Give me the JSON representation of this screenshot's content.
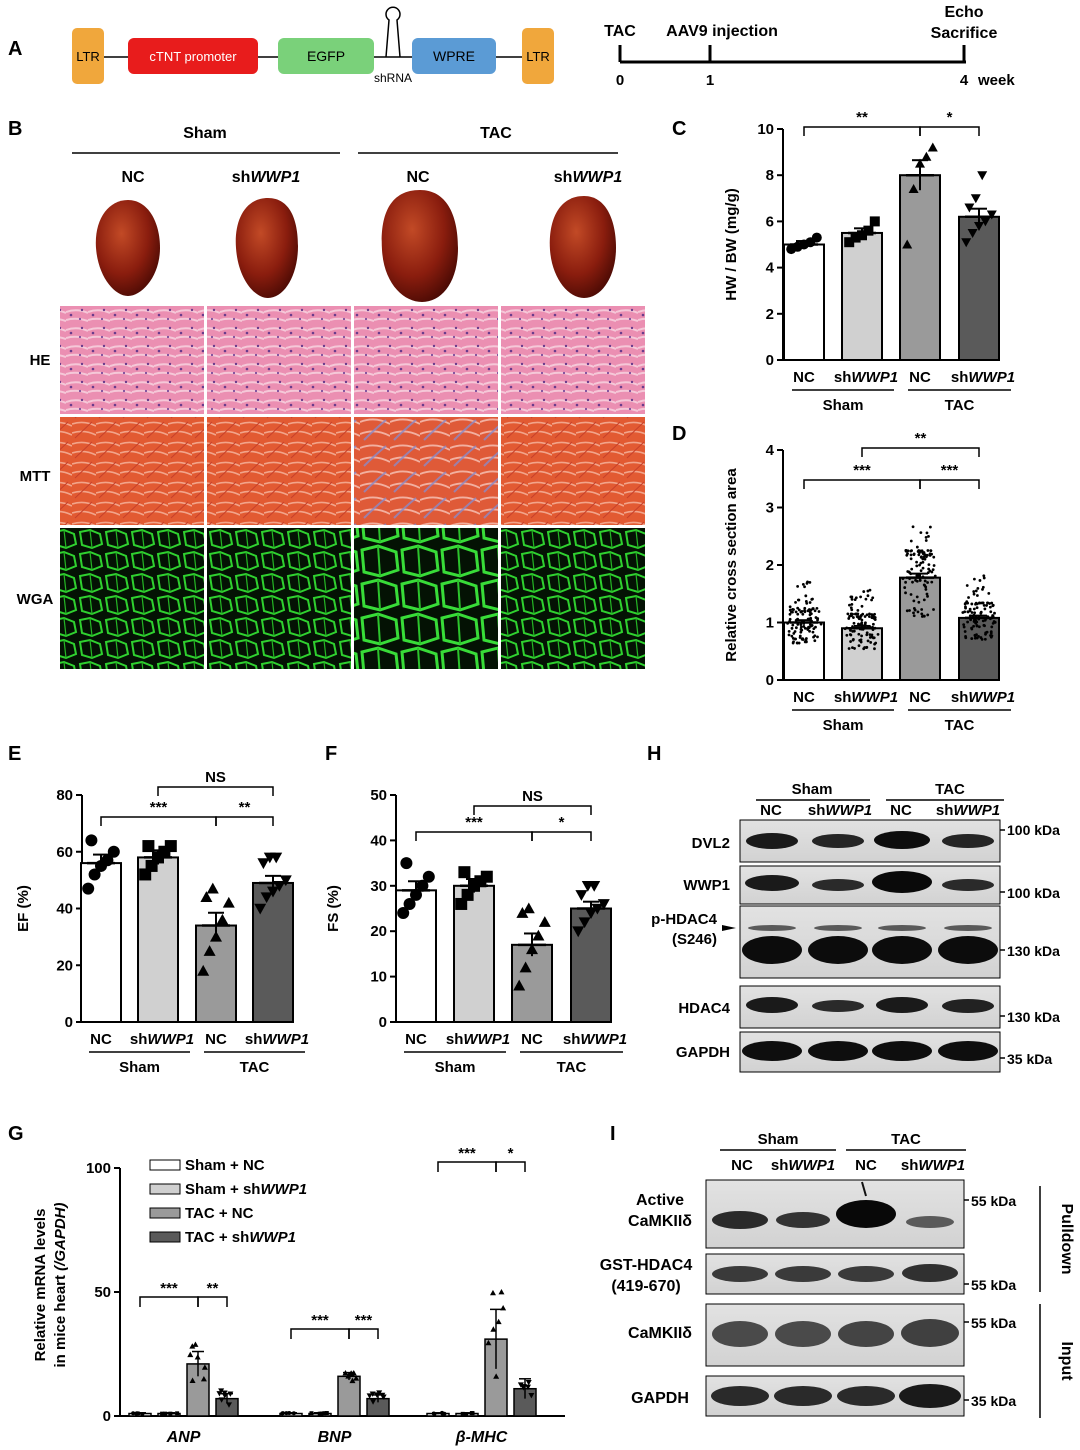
{
  "panel_letters": [
    "A",
    "B",
    "C",
    "D",
    "E",
    "F",
    "G",
    "H",
    "I"
  ],
  "colors": {
    "ltr": "#f0a73c",
    "promoter": "#e81c1c",
    "egfp": "#7ad17a",
    "wpre": "#5b9bd5",
    "bar_sham_nc": "#ffffff",
    "bar_sham_sh": "#d0d0d0",
    "bar_tac_nc": "#9a9a9a",
    "bar_tac_sh": "#5a5a5a",
    "he_tissue": "#e47aa0",
    "mtt_tissue": "#e04a2c",
    "wga_green": "#22c922",
    "heart": "#8a1d0e"
  },
  "construct": {
    "ltr_left": "LTR",
    "promoter": "cTNT promoter",
    "egfp": "EGFP",
    "shrna": "shRNA",
    "wpre": "WPRE",
    "ltr_right": "LTR"
  },
  "timeline": {
    "tac": "TAC",
    "aav": "AAV9 injection",
    "echo": "Echo",
    "sacrifice": "Sacrifice",
    "t0": "0",
    "t1": "1",
    "t4": "4",
    "unit": "week"
  },
  "panel_b": {
    "sham": "Sham",
    "tac": "TAC",
    "nc": "NC",
    "sh_prefix": "sh",
    "sh_gene": "WWP1",
    "rows": [
      "HE",
      "MTT",
      "WGA"
    ]
  },
  "groups": {
    "nc": "NC",
    "sh_prefix": "sh",
    "sh_gene": "WWP1",
    "sham": "Sham",
    "tac": "TAC"
  },
  "sig": {
    "two": "**",
    "one": "*",
    "three": "***",
    "ns": "NS"
  },
  "legend_g": [
    {
      "prefix": "Sham + NC",
      "gene": ""
    },
    {
      "prefix": "Sham + sh",
      "gene": "WWP1"
    },
    {
      "prefix": "TAC + NC",
      "gene": ""
    },
    {
      "prefix": "TAC + sh",
      "gene": "WWP1"
    }
  ],
  "chart_data": [
    {
      "panel": "C",
      "type": "bar",
      "ylabel": "HW / BW (mg/g)",
      "ylim": [
        0,
        10
      ],
      "yticks": [
        "0",
        "2",
        "4",
        "6",
        "8",
        "10"
      ],
      "categories": [
        "Sham NC",
        "Sham shWWP1",
        "TAC NC",
        "TAC shWWP1"
      ],
      "values": [
        5.0,
        5.5,
        8.0,
        6.2
      ],
      "errors": [
        0.15,
        0.2,
        0.65,
        0.35
      ],
      "points": [
        [
          4.8,
          4.9,
          5.0,
          5.1,
          5.3
        ],
        [
          5.1,
          5.3,
          5.4,
          5.6,
          6.0
        ],
        [
          5.0,
          7.4,
          8.5,
          8.8,
          9.2
        ],
        [
          5.1,
          5.5,
          5.8,
          6.0,
          6.3,
          6.6,
          7.0,
          8.0
        ]
      ],
      "markers": [
        "circle",
        "square",
        "triangle-up",
        "triangle-down"
      ]
    },
    {
      "panel": "D",
      "type": "bar",
      "ylabel": "Relative cross section area",
      "ylim": [
        0,
        4
      ],
      "yticks": [
        "0",
        "1",
        "2",
        "3",
        "4"
      ],
      "categories": [
        "Sham NC",
        "Sham shWWP1",
        "TAC NC",
        "TAC shWWP1"
      ],
      "values": [
        1.0,
        0.9,
        1.78,
        1.08
      ],
      "errors": [
        0.04,
        0.04,
        0.07,
        0.04
      ],
      "point_spread": [
        [
          0.35,
          1.95
        ],
        [
          0.25,
          1.8
        ],
        [
          0.55,
          3.0
        ],
        [
          0.4,
          2.15
        ]
      ]
    },
    {
      "panel": "E",
      "type": "bar",
      "ylabel": "EF (%)",
      "ylim": [
        0,
        80
      ],
      "yticks": [
        "0",
        "20",
        "40",
        "60",
        "80"
      ],
      "categories": [
        "Sham NC",
        "Sham shWWP1",
        "TAC NC",
        "TAC shWWP1"
      ],
      "values": [
        56,
        58,
        34,
        49
      ],
      "errors": [
        3,
        2.5,
        4.5,
        2.5
      ],
      "points": [
        [
          47,
          52,
          55,
          57,
          60,
          64
        ],
        [
          52,
          55,
          58,
          60,
          62,
          62
        ],
        [
          18,
          25,
          30,
          36,
          42,
          44,
          47
        ],
        [
          40,
          44,
          46,
          48,
          50,
          56,
          58,
          58
        ]
      ],
      "markers": [
        "circle",
        "square",
        "triangle-up",
        "triangle-down"
      ]
    },
    {
      "panel": "F",
      "type": "bar",
      "ylabel": "FS (%)",
      "ylim": [
        0,
        50
      ],
      "yticks": [
        "0",
        "10",
        "20",
        "30",
        "40",
        "50"
      ],
      "categories": [
        "Sham NC",
        "Sham shWWP1",
        "TAC NC",
        "TAC shWWP1"
      ],
      "values": [
        29,
        30,
        17,
        25
      ],
      "errors": [
        2,
        1.5,
        2.5,
        1.5
      ],
      "points": [
        [
          24,
          26,
          28,
          30,
          32,
          35
        ],
        [
          26,
          28,
          30,
          31,
          32,
          33
        ],
        [
          8,
          12,
          16,
          19,
          22,
          24,
          25
        ],
        [
          20,
          22,
          24,
          25,
          26,
          28,
          30,
          30
        ]
      ],
      "markers": [
        "circle",
        "square",
        "triangle-up",
        "triangle-down"
      ]
    },
    {
      "panel": "G",
      "type": "bar",
      "ylabel_line1": "Relative mRNA levels",
      "ylabel_line2": "in mice heart",
      "ylabel_paren": "(/GAPDH)",
      "ylim": [
        0,
        100
      ],
      "yticks": [
        "0",
        "50",
        "100"
      ],
      "categories": [
        "ANP",
        "BNP",
        "β-MHC"
      ],
      "series": [
        {
          "name": "Sham + NC",
          "values": [
            1,
            1,
            1
          ],
          "errors": [
            0.3,
            0.3,
            0.3
          ]
        },
        {
          "name": "Sham + shWWP1",
          "values": [
            1,
            1,
            1
          ],
          "errors": [
            0.3,
            0.3,
            0.3
          ]
        },
        {
          "name": "TAC + NC",
          "values": [
            21,
            16,
            31
          ],
          "errors": [
            5,
            1.5,
            12
          ]
        },
        {
          "name": "TAC + shWWP1",
          "values": [
            7,
            7,
            11
          ],
          "errors": [
            2,
            1.5,
            4
          ]
        }
      ]
    }
  ],
  "panel_h": {
    "rows": [
      "DVL2",
      "WWP1",
      "p-HDAC4",
      "(S246)",
      "HDAC4",
      "GAPDH"
    ],
    "mw": [
      "100 kDa",
      "100 kDa",
      "130 kDa",
      "130 kDa",
      "35 kDa"
    ]
  },
  "panel_i": {
    "rows": [
      "Active",
      "CaMKIIδ",
      "GST-HDAC4",
      "(419-670)",
      "CaMKIIδ",
      "GAPDH"
    ],
    "mw": [
      "55 kDa",
      "55 kDa",
      "55 kDa",
      "35 kDa"
    ],
    "side": [
      "Pulldown",
      "Input"
    ]
  }
}
